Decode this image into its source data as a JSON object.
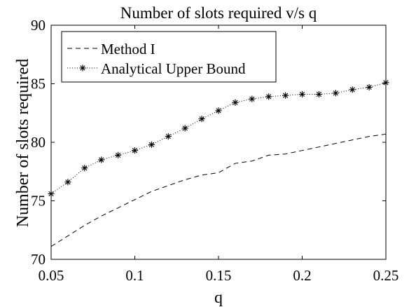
{
  "chart_data": {
    "type": "line",
    "title": "Number of slots required v/s q",
    "xlabel": "q",
    "ylabel": "Number of slots required",
    "xlim": [
      0.05,
      0.25
    ],
    "ylim": [
      70,
      90
    ],
    "xticks": [
      0.05,
      0.1,
      0.15,
      0.2,
      0.25
    ],
    "xtick_labels": [
      "0.05",
      "0.1",
      "0.15",
      "0.2",
      "0.25"
    ],
    "yticks": [
      70,
      75,
      80,
      85,
      90
    ],
    "ytick_labels": [
      "70",
      "75",
      "80",
      "85",
      "90"
    ],
    "grid": false,
    "legend_position": "top-left",
    "series": [
      {
        "name": "Method I",
        "style": "dashed",
        "marker": "none",
        "color": "#000000",
        "x": [
          0.05,
          0.06,
          0.07,
          0.08,
          0.09,
          0.1,
          0.11,
          0.12,
          0.13,
          0.14,
          0.15,
          0.16,
          0.17,
          0.18,
          0.19,
          0.2,
          0.21,
          0.22,
          0.23,
          0.24,
          0.25
        ],
        "y": [
          71.1,
          72.0,
          72.9,
          73.7,
          74.4,
          75.1,
          75.8,
          76.3,
          76.8,
          77.2,
          77.4,
          78.2,
          78.4,
          78.9,
          79.0,
          79.3,
          79.6,
          79.9,
          80.2,
          80.5,
          80.7
        ]
      },
      {
        "name": "Analytical Upper Bound",
        "style": "dotted",
        "marker": "asterisk",
        "color": "#000000",
        "x": [
          0.05,
          0.06,
          0.07,
          0.08,
          0.09,
          0.1,
          0.11,
          0.12,
          0.13,
          0.14,
          0.15,
          0.16,
          0.17,
          0.18,
          0.19,
          0.2,
          0.21,
          0.22,
          0.23,
          0.24,
          0.25
        ],
        "y": [
          75.6,
          76.6,
          77.8,
          78.5,
          78.9,
          79.3,
          79.8,
          80.5,
          81.2,
          82.0,
          82.7,
          83.4,
          83.7,
          83.9,
          84.0,
          84.1,
          84.1,
          84.2,
          84.5,
          84.7,
          85.1
        ]
      }
    ]
  }
}
